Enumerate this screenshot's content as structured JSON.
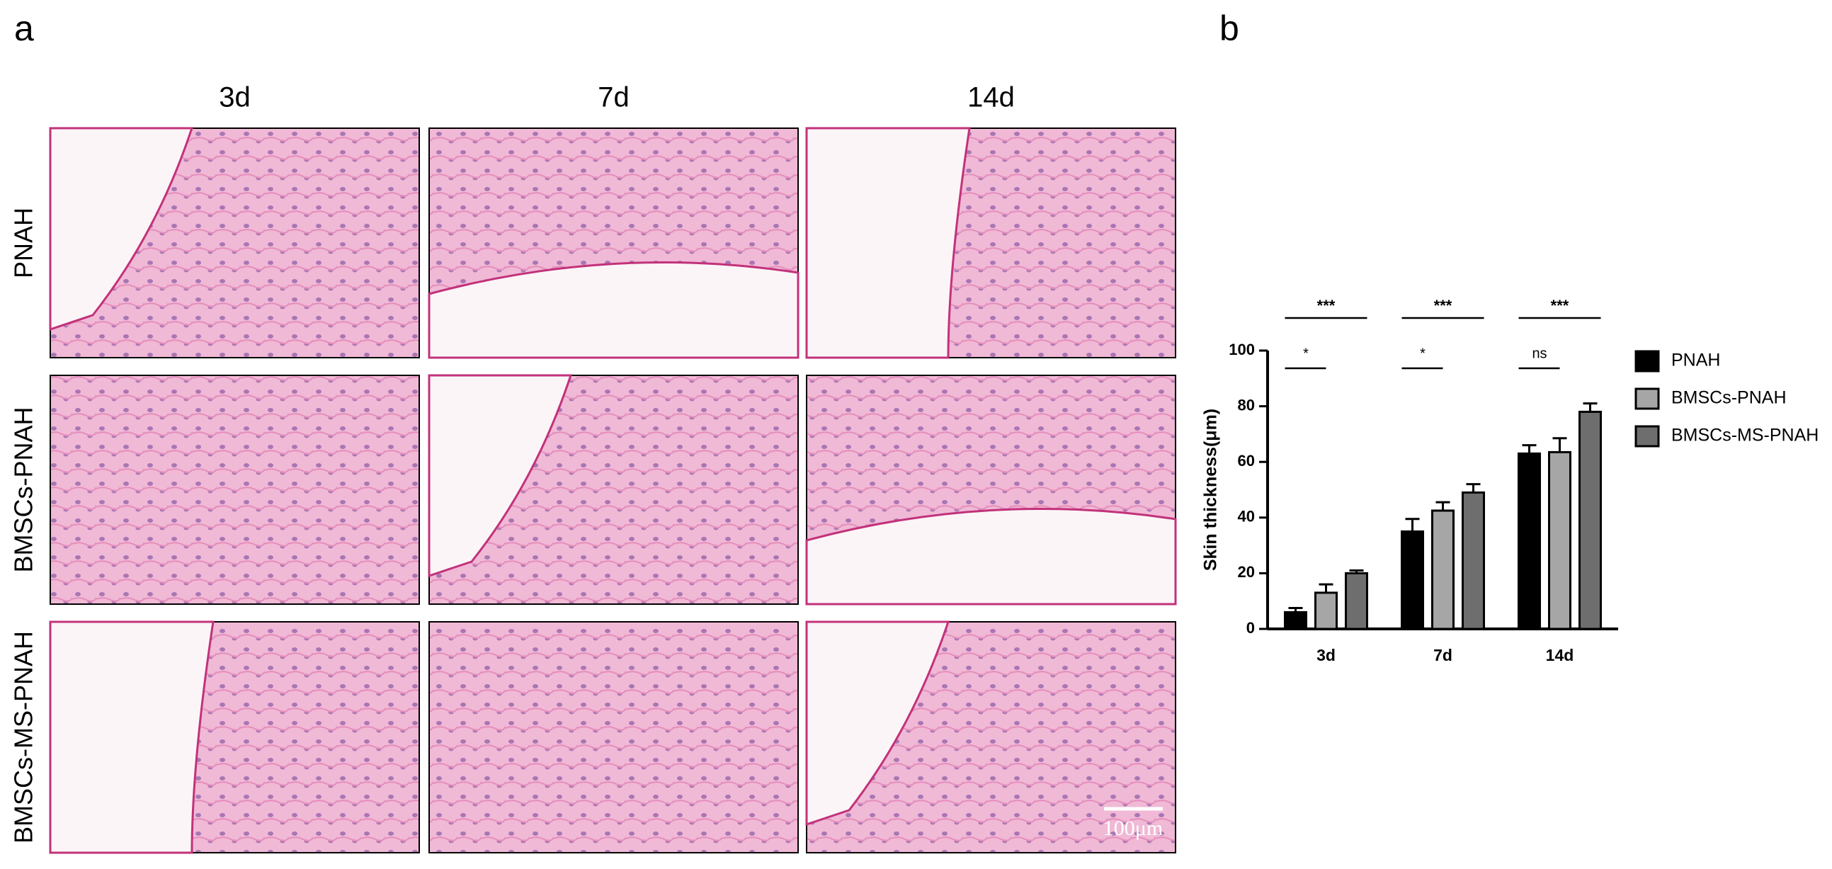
{
  "panel_a": {
    "label": "a",
    "columns": [
      "3d",
      "7d",
      "14d"
    ],
    "rows": [
      "PNAH",
      "BMSCs-PNAH",
      "BMSCs-MS-PNAH"
    ],
    "scale_bar": "100μm"
  },
  "chart_data": {
    "type": "bar",
    "label": "b",
    "y_label": "Skin thickness(μm)",
    "categories": [
      "3d",
      "7d",
      "14d"
    ],
    "series": [
      {
        "name": "PNAH",
        "color": "#000000",
        "values": [
          6,
          35,
          63
        ],
        "errors": [
          1.5,
          4.5,
          3
        ]
      },
      {
        "name": "BMSCs-PNAH",
        "color": "#a6a6a6",
        "values": [
          13,
          42.5,
          63.5
        ],
        "errors": [
          3,
          3,
          5
        ]
      },
      {
        "name": "BMSCs-MS-PNAH",
        "color": "#6e6e6e",
        "values": [
          20,
          49,
          78
        ],
        "errors": [
          1,
          3,
          3
        ]
      }
    ],
    "significance": [
      {
        "top": "***",
        "bottom": "*"
      },
      {
        "top": "***",
        "bottom": "*"
      },
      {
        "top": "***",
        "bottom": "ns"
      }
    ],
    "ylim": [
      0,
      100
    ],
    "yticks": [
      0,
      20,
      40,
      60,
      80,
      100
    ],
    "grid": false
  }
}
